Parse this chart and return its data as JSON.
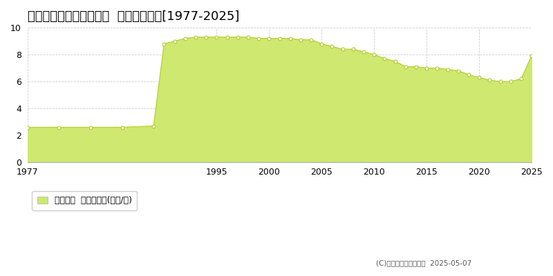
{
  "title": "中川郡幕別町札内中央町  公示地価推移[1977-2025]",
  "years": [
    1977,
    1980,
    1983,
    1986,
    1989,
    1990,
    1991,
    1992,
    1993,
    1994,
    1995,
    1996,
    1997,
    1998,
    1999,
    2000,
    2001,
    2002,
    2003,
    2004,
    2005,
    2006,
    2007,
    2008,
    2009,
    2010,
    2011,
    2012,
    2013,
    2014,
    2015,
    2016,
    2017,
    2018,
    2019,
    2020,
    2021,
    2022,
    2023,
    2024,
    2025
  ],
  "values": [
    2.6,
    2.6,
    2.6,
    2.6,
    2.7,
    8.8,
    9.0,
    9.2,
    9.3,
    9.3,
    9.3,
    9.3,
    9.3,
    9.3,
    9.2,
    9.2,
    9.2,
    9.2,
    9.1,
    9.1,
    8.8,
    8.6,
    8.4,
    8.4,
    8.2,
    8.0,
    7.7,
    7.5,
    7.1,
    7.1,
    7.0,
    7.0,
    6.9,
    6.8,
    6.5,
    6.3,
    6.1,
    6.0,
    6.0,
    6.2,
    7.9
  ],
  "xlim": [
    1977,
    2025
  ],
  "ylim": [
    0,
    10
  ],
  "yticks": [
    0,
    2,
    4,
    6,
    8,
    10
  ],
  "xtick_positions": [
    1977,
    1995,
    2000,
    2005,
    2010,
    2015,
    2020,
    2025
  ],
  "xtick_labels": [
    "1977",
    "1995",
    "2000",
    "2005",
    "2010",
    "2015",
    "2020",
    "2025"
  ],
  "fill_color": "#cfe870",
  "line_color": "#b8d430",
  "marker_face_color": "#ffffff",
  "marker_edge_color": "#b0c830",
  "bg_color": "#ffffff",
  "grid_color": "#cccccc",
  "legend_label": "公示地価  平均坪単価(万円/坪)",
  "copyright_text": "(C)土地価格ドットコム  2025-05-07",
  "title_fontsize": 13,
  "axis_fontsize": 9,
  "legend_fontsize": 9
}
